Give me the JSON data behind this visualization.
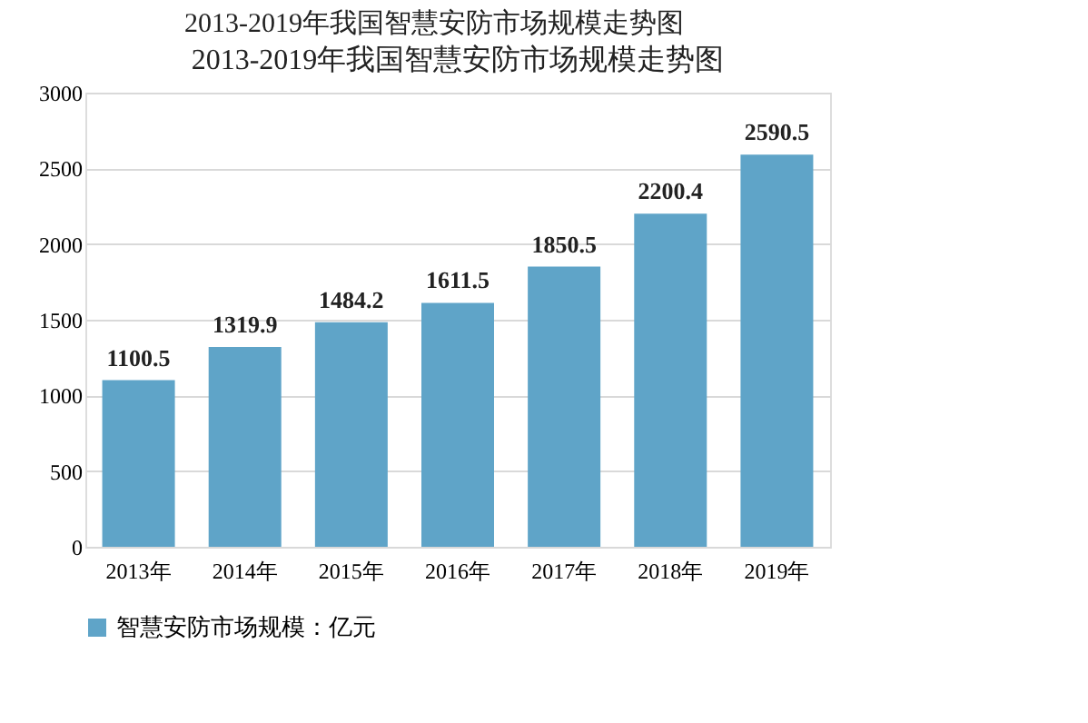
{
  "chart_data": {
    "type": "bar",
    "title": "2013-2019年我国智慧安防市场规模走势图",
    "subtitle": "2013-2019年我国智慧安防市场规模走势图",
    "categories": [
      "2013年",
      "2014年",
      "2015年",
      "2016年",
      "2017年",
      "2018年",
      "2019年"
    ],
    "series": [
      {
        "name": "智慧安防市场规模：亿元",
        "color": "#5fa4c8",
        "values": [
          1100.5,
          1319.9,
          1484.2,
          1611.5,
          1850.5,
          2200.4,
          2590.5
        ]
      }
    ],
    "ylim": [
      0,
      3000
    ],
    "yticks": [
      0,
      500,
      1000,
      1500,
      2000,
      2500,
      3000
    ],
    "grid": "y",
    "legend": "bottom",
    "data_labels": true
  }
}
